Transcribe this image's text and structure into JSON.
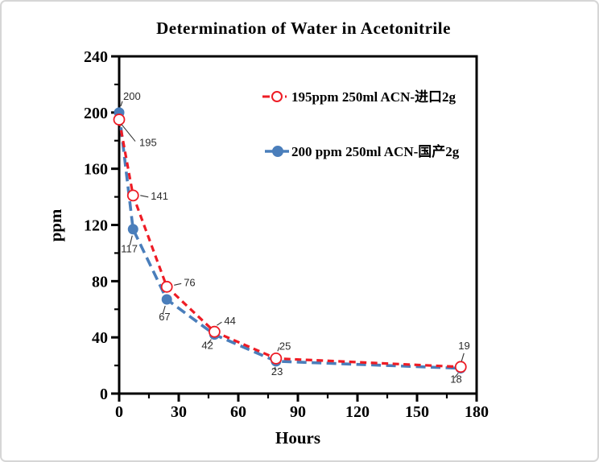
{
  "figure": {
    "background": "#ffffff",
    "border_color": "#d6d6d6",
    "frame_color": "#000000"
  },
  "chart_data": {
    "type": "line",
    "title": "Determination of Water in Acetonitrile",
    "xlabel": "Hours",
    "ylabel": "ppm",
    "xlim": [
      0,
      180
    ],
    "ylim": [
      0,
      240
    ],
    "x_major_ticks": [
      0,
      30,
      60,
      90,
      120,
      150,
      180
    ],
    "x_minor_step": 15,
    "y_major_ticks": [
      0,
      40,
      80,
      120,
      160,
      200,
      240
    ],
    "y_minor_step": 20,
    "grid": false,
    "legend_position": "inside-top",
    "point_labels_shown": true,
    "x": [
      0,
      7,
      24,
      48,
      79,
      172
    ],
    "series": [
      {
        "name": "195ppm  250ml ACN-进口2g",
        "color": "#ee1c25",
        "marker": "open-circle",
        "line_style": "dashed",
        "values": [
          195,
          141,
          76,
          44,
          25,
          19
        ]
      },
      {
        "name": "200 ppm 250ml ACN-国产2g",
        "color": "#4a7ebb",
        "marker": "filled-circle",
        "line_style": "dashed",
        "values": [
          200,
          117,
          67,
          42,
          23,
          18
        ]
      }
    ]
  }
}
